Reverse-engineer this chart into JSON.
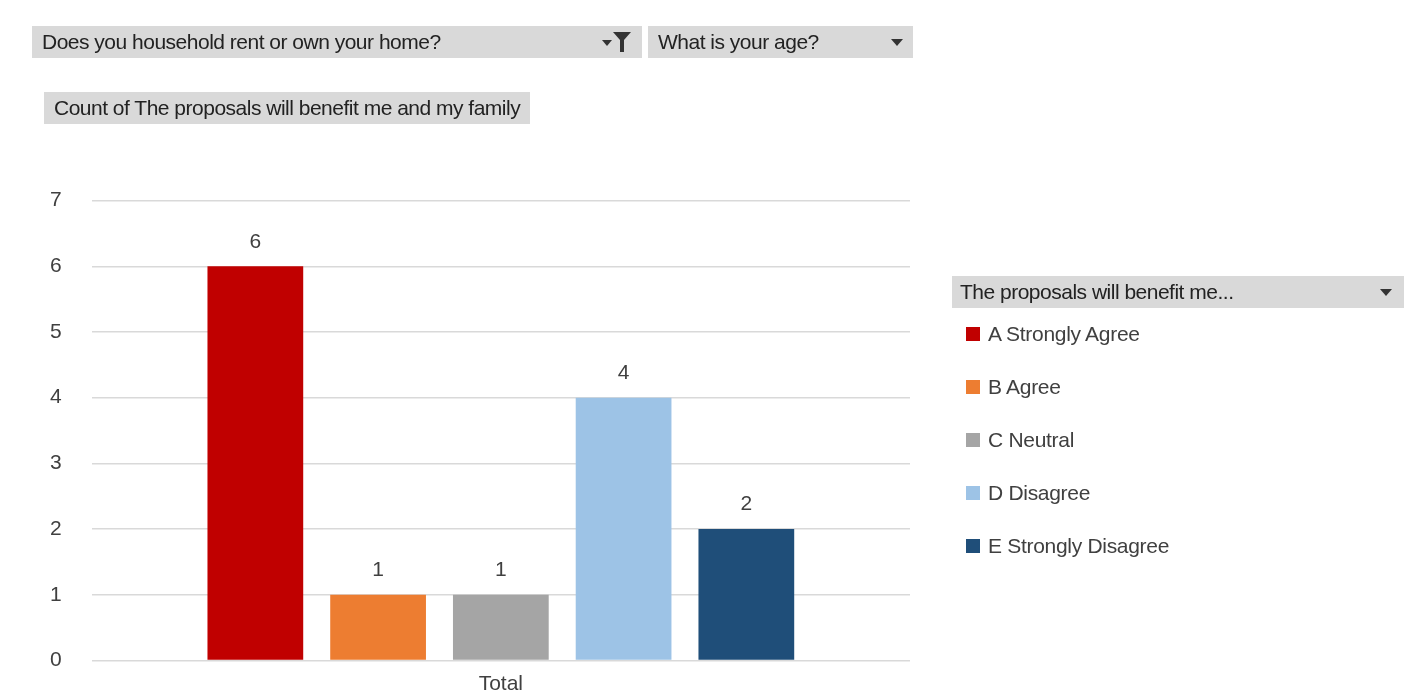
{
  "chart_data": {
    "type": "bar",
    "title": "Count of The proposals will benefit me and my family",
    "annotations": [
      "Does you household rent or own your home?",
      "What is your age?"
    ],
    "categories": [
      "Total"
    ],
    "series": [
      {
        "name": "A Strongly Agree",
        "color": "#c00000",
        "values": [
          6
        ]
      },
      {
        "name": "B Agree",
        "color": "#ed7d31",
        "values": [
          1
        ]
      },
      {
        "name": "C Neutral",
        "color": "#a5a5a5",
        "values": [
          1
        ]
      },
      {
        "name": "D Disagree",
        "color": "#9dc3e6",
        "values": [
          4
        ]
      },
      {
        "name": "E Strongly Disagree",
        "color": "#1f4e79",
        "values": [
          2
        ]
      }
    ],
    "ylim": [
      0,
      7
    ],
    "yticks": [
      0,
      1,
      2,
      3,
      4,
      5,
      6,
      7
    ],
    "grid": "y",
    "data_labels": true,
    "legend": "right",
    "legend_title": "The proposals will benefit me..."
  }
}
